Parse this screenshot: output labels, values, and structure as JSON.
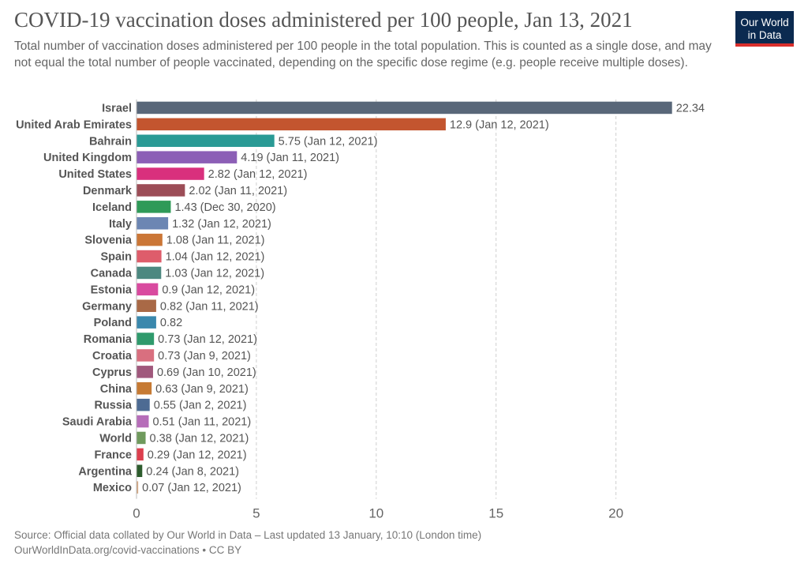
{
  "header": {
    "title": "COVID-19 vaccination doses administered per 100 people, Jan 13, 2021",
    "subtitle": "Total number of vaccination doses administered per 100 people in the total population. This is counted as a single dose, and may not equal the total number of people vaccinated, depending on the specific dose regime (e.g. people receive multiple doses).",
    "logo_line1": "Our World",
    "logo_line2": "in Data"
  },
  "footer": {
    "source": "Source: Official data collated by Our World in Data – Last updated 13 January, 10:10 (London time)",
    "link": "OurWorldInData.org/covid-vaccinations • CC BY"
  },
  "chart_data": {
    "type": "bar",
    "orientation": "horizontal",
    "title": "COVID-19 vaccination doses administered per 100 people, Jan 13, 2021",
    "xlim": [
      0,
      22.34
    ],
    "xticks": [
      0,
      5,
      10,
      15,
      20
    ],
    "grid": true,
    "categories": [
      "Israel",
      "United Arab Emirates",
      "Bahrain",
      "United Kingdom",
      "United States",
      "Denmark",
      "Iceland",
      "Italy",
      "Slovenia",
      "Spain",
      "Canada",
      "Estonia",
      "Germany",
      "Poland",
      "Romania",
      "Croatia",
      "Cyprus",
      "China",
      "Russia",
      "Saudi Arabia",
      "World",
      "France",
      "Argentina",
      "Mexico"
    ],
    "values": [
      22.34,
      12.9,
      5.75,
      4.19,
      2.82,
      2.02,
      1.43,
      1.32,
      1.08,
      1.04,
      1.03,
      0.9,
      0.82,
      0.82,
      0.73,
      0.73,
      0.69,
      0.63,
      0.55,
      0.51,
      0.38,
      0.29,
      0.24,
      0.07
    ],
    "value_labels": [
      "22.34",
      "12.9 (Jan 12, 2021)",
      "5.75 (Jan 12, 2021)",
      "4.19 (Jan 11, 2021)",
      "2.82 (Jan 12, 2021)",
      "2.02 (Jan 11, 2021)",
      "1.43 (Dec 30, 2020)",
      "1.32 (Jan 12, 2021)",
      "1.08 (Jan 11, 2021)",
      "1.04 (Jan 12, 2021)",
      "1.03 (Jan 12, 2021)",
      "0.9 (Jan 12, 2021)",
      "0.82 (Jan 11, 2021)",
      "0.82",
      "0.73 (Jan 12, 2021)",
      "0.73 (Jan 9, 2021)",
      "0.69 (Jan 10, 2021)",
      "0.63 (Jan 9, 2021)",
      "0.55 (Jan 2, 2021)",
      "0.51 (Jan 11, 2021)",
      "0.38 (Jan 12, 2021)",
      "0.29 (Jan 12, 2021)",
      "0.24 (Jan 8, 2021)",
      "0.07 (Jan 12, 2021)"
    ],
    "colors": [
      "#596779",
      "#c3552f",
      "#2a9a95",
      "#8c5fb6",
      "#d9307d",
      "#9c4d57",
      "#2f9a58",
      "#6c86b3",
      "#cb7636",
      "#de5d6b",
      "#4c8880",
      "#d94a9f",
      "#a96946",
      "#3a88ad",
      "#2f9a6c",
      "#d96f7f",
      "#a0587c",
      "#c67a33",
      "#4d6b93",
      "#b66db9",
      "#6f9a5d",
      "#dc3f4e",
      "#2d5c2d",
      "#d2a682"
    ]
  }
}
